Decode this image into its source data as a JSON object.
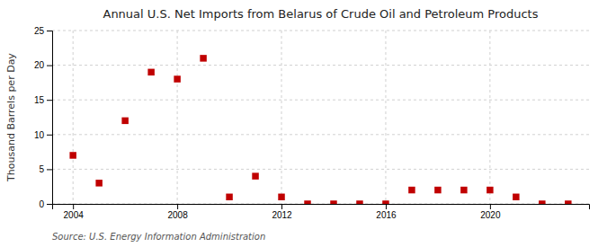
{
  "chart_data": {
    "type": "scatter",
    "title": "Annual U.S. Net Imports from Belarus of Crude Oil and Petroleum Products",
    "ylabel": "Thousand Barrels per Day",
    "source": "Source: U.S. Energy Information Administration",
    "x": [
      2004,
      2005,
      2006,
      2007,
      2008,
      2009,
      2010,
      2011,
      2012,
      2013,
      2014,
      2015,
      2016,
      2017,
      2018,
      2019,
      2020,
      2021,
      2022,
      2023
    ],
    "values": [
      7,
      3,
      12,
      19,
      18,
      21,
      1,
      4,
      1,
      0,
      0,
      0,
      0,
      2,
      2,
      2,
      2,
      1,
      0,
      0
    ],
    "color": "#c00000",
    "marker": "square",
    "xlim": [
      2003.2,
      2023.8
    ],
    "xticks": [
      2004,
      2008,
      2012,
      2016,
      2020
    ],
    "ylim": [
      0,
      25
    ],
    "yticks": [
      0,
      5,
      10,
      15,
      20,
      25
    ],
    "grid": true
  }
}
